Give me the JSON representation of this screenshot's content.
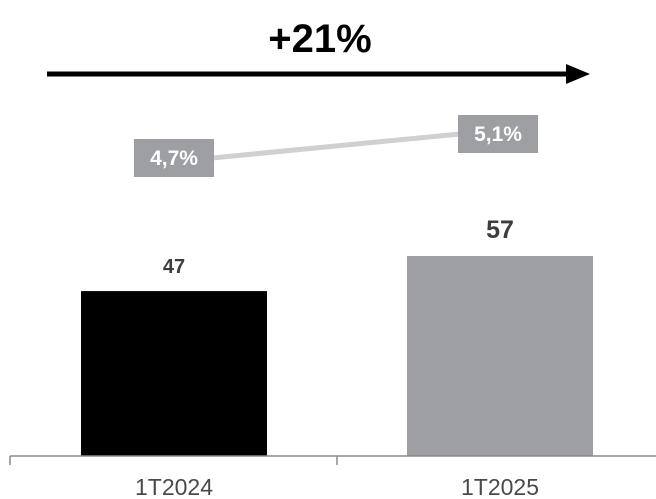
{
  "growth_label": "+21%",
  "chart_data": {
    "type": "bar",
    "categories": [
      "1T2024",
      "1T2025"
    ],
    "values": [
      47,
      57
    ],
    "value_labels": [
      "47",
      "57"
    ],
    "colors": [
      "#000000",
      "#9d9fa3"
    ],
    "ylim": [
      0,
      70
    ],
    "title": "",
    "xlabel": "",
    "ylabel": "",
    "grid": false,
    "secondary": {
      "type": "line",
      "values": [
        4.7,
        5.1
      ],
      "labels": [
        "4,7%",
        "5,1%"
      ],
      "ylim": [
        4.0,
        5.5
      ],
      "line_color": "#d0d0d0",
      "label_bg_color": "#9d9fa3"
    }
  }
}
